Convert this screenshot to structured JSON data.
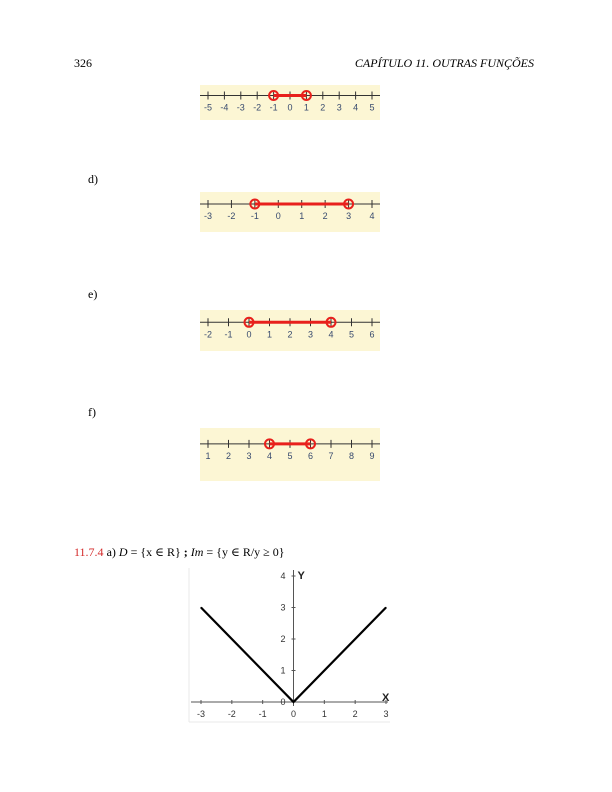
{
  "header": {
    "page_number": "326",
    "running_title": "CAPÍTULO 11.  OUTRAS FUNÇÕES"
  },
  "number_lines": [
    {
      "label": "",
      "ticks": [
        -5,
        -4,
        -3,
        -2,
        -1,
        0,
        1,
        2,
        3,
        4,
        5
      ],
      "from": -1,
      "to": 1
    },
    {
      "label": "d)",
      "ticks": [
        -3,
        -2,
        -1,
        0,
        1,
        2,
        3,
        4
      ],
      "from": -1,
      "to": 3
    },
    {
      "label": "e)",
      "ticks": [
        -2,
        -1,
        0,
        1,
        2,
        3,
        4,
        5,
        6
      ],
      "from": 0,
      "to": 4
    },
    {
      "label": "f)",
      "ticks": [
        1,
        2,
        3,
        4,
        5,
        6,
        7,
        8,
        9
      ],
      "from": 4,
      "to": 6
    }
  ],
  "exercise": {
    "number": "11.7.4",
    "part": "a)",
    "domain_lhs": "D",
    "domain_rhs": "= {x ∈ R}",
    "separator": " ; ",
    "image_lhs": "Im",
    "image_rhs": "= {y ∈ R/y ≥ 0}"
  },
  "chart_data": {
    "type": "line",
    "x": [
      -3,
      0,
      3
    ],
    "series": [
      {
        "values": [
          3,
          0,
          3
        ]
      }
    ],
    "xlim": [
      -3,
      3
    ],
    "ylim": [
      0,
      4
    ],
    "x_ticks": [
      -3,
      -2,
      -1,
      0,
      1,
      2,
      3
    ],
    "y_ticks": [
      0,
      1,
      2,
      3,
      4
    ],
    "xlabel": "X",
    "ylabel": "Y",
    "grid": false,
    "colors": {
      "line": "#000000",
      "axis": "#555555"
    }
  },
  "colors": {
    "panel": "#fcf6d4",
    "interval": "#e8201c",
    "line": "#333333",
    "tick_text": "#374a6e"
  }
}
